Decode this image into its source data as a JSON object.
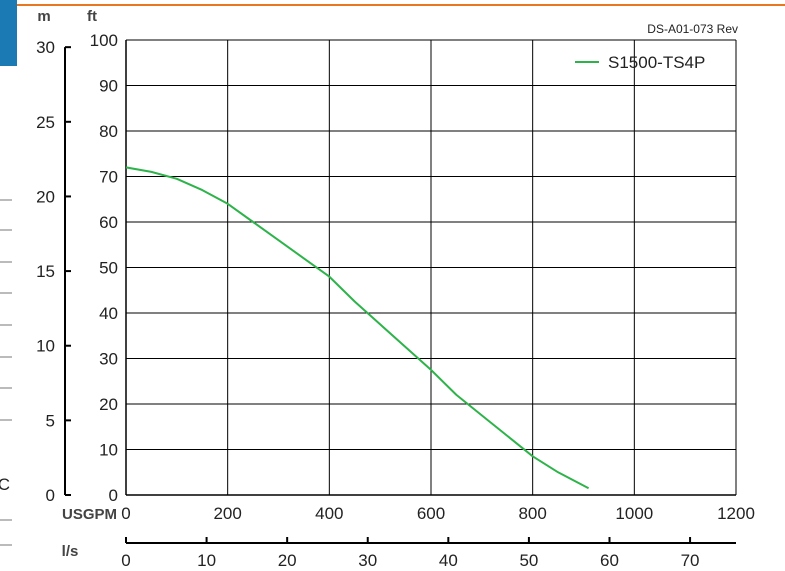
{
  "doc_code": "DS-A01-073 Rev",
  "chart_data": {
    "type": "line",
    "series": [
      {
        "name": "S1500-TS4P",
        "color": "#2db34a",
        "x": [
          0,
          50,
          100,
          150,
          200,
          250,
          300,
          350,
          400,
          450,
          500,
          550,
          600,
          650,
          700,
          750,
          800,
          850,
          910
        ],
        "y": [
          72,
          71,
          69.5,
          67,
          64,
          60,
          56,
          52,
          48,
          42.5,
          37.5,
          32.5,
          27.5,
          22,
          17.5,
          13,
          8.5,
          5,
          1.5
        ]
      }
    ],
    "axes": {
      "x_primary": {
        "unit": "USGPM",
        "range": [
          0,
          1200
        ],
        "ticks": [
          0,
          200,
          400,
          600,
          800,
          1000,
          1200
        ],
        "grid": true
      },
      "x_secondary": {
        "unit": "l/s",
        "range": [
          0,
          75.7
        ],
        "ticks": [
          0,
          10,
          20,
          30,
          40,
          50,
          60,
          70
        ]
      },
      "y_primary": {
        "unit": "ft",
        "range": [
          0,
          100
        ],
        "ticks": [
          0,
          10,
          20,
          30,
          40,
          50,
          60,
          70,
          80,
          90,
          100
        ],
        "grid": true
      },
      "y_secondary": {
        "unit": "m",
        "range": [
          0,
          30.48
        ],
        "ticks": [
          0,
          5,
          10,
          15,
          20,
          25,
          30
        ]
      }
    },
    "legend": {
      "position": "top-right"
    }
  }
}
